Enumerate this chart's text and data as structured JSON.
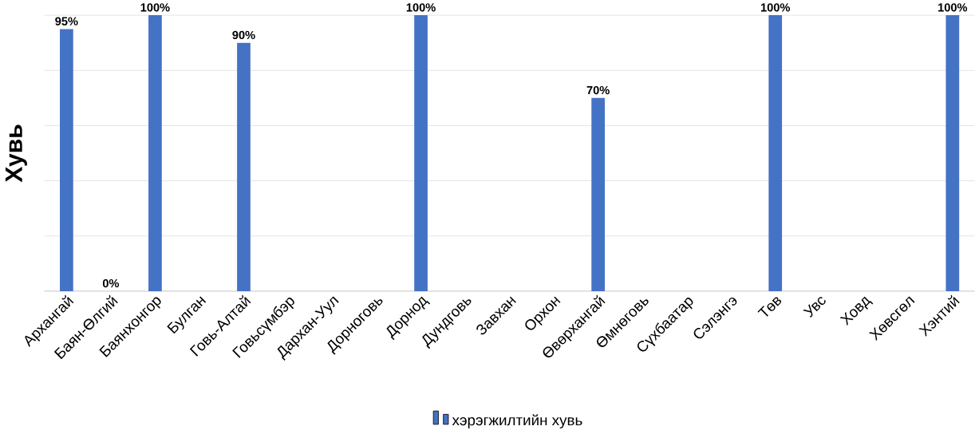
{
  "chart_data": {
    "type": "bar",
    "ylabel": "Хувь",
    "categories": [
      "Архангай",
      "Баян-Өлгий",
      "Баянхонгор",
      "Булган",
      "Говь-Алтай",
      "Говьсүмбэр",
      "Дархан-Уул",
      "Дорноговь",
      "Дорнод",
      "Дундговь",
      "Завхан",
      "Орхон",
      "Өвөрхангай",
      "Өмнөговь",
      "Сүхбаатар",
      "Сэлэнгэ",
      "Төв",
      "Увс",
      "Ховд",
      "Хөвсгөл",
      "Хэнтий"
    ],
    "series": [
      {
        "name": "хэрэгжилтийн  хувь",
        "color": "#4472c4",
        "values": [
          95,
          0,
          100,
          null,
          90,
          null,
          null,
          null,
          100,
          null,
          null,
          null,
          70,
          null,
          null,
          null,
          100,
          null,
          null,
          null,
          100
        ],
        "value_labels": [
          "95%",
          "0%",
          "100%",
          null,
          "90%",
          null,
          null,
          null,
          "100%",
          null,
          null,
          null,
          "70%",
          null,
          null,
          null,
          "100%",
          null,
          null,
          null,
          "100%"
        ]
      }
    ],
    "ylim": [
      0,
      100
    ],
    "yticks": [
      {
        "value": 0,
        "label": null
      },
      {
        "value": 20,
        "label": null
      },
      {
        "value": 40,
        "label": null
      },
      {
        "value": 60,
        "label": null
      },
      {
        "value": 80,
        "label": null
      },
      {
        "value": 100,
        "label": null
      }
    ],
    "tick_labels": "x",
    "grid": "y",
    "legend": "bottom"
  }
}
